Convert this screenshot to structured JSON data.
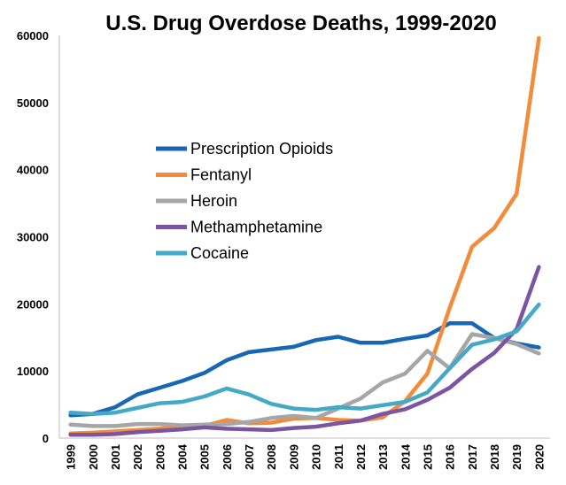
{
  "chart_data": {
    "type": "line",
    "title": "U.S. Drug Overdose Deaths, 1999-2020",
    "xlabel": "",
    "ylabel": "",
    "x": [
      "1999",
      "2000",
      "2001",
      "2002",
      "2003",
      "2004",
      "2005",
      "2006",
      "2007",
      "2008",
      "2009",
      "2010",
      "2011",
      "2012",
      "2013",
      "2014",
      "2015",
      "2016",
      "2017",
      "2018",
      "2019",
      "2020"
    ],
    "ylim": [
      0,
      60000
    ],
    "yticks": [
      0,
      10000,
      20000,
      30000,
      40000,
      50000,
      60000
    ],
    "grid": false,
    "legend_position": "center-left",
    "series": [
      {
        "name": "Prescription Opioids",
        "color": "#1767b3",
        "values": [
          3400,
          3600,
          4600,
          6500,
          7500,
          8500,
          9700,
          11600,
          12800,
          13200,
          13600,
          14600,
          15100,
          14200,
          14200,
          14800,
          15300,
          17100,
          17100,
          14900,
          14100,
          13500
        ]
      },
      {
        "name": "Fentanyl",
        "color": "#f28c3a",
        "values": [
          700,
          800,
          1000,
          1200,
          1400,
          1700,
          1800,
          2700,
          2200,
          2300,
          2900,
          3000,
          2700,
          2600,
          3100,
          5500,
          9600,
          19400,
          28500,
          31300,
          36400,
          59600
        ]
      },
      {
        "name": "Heroin",
        "color": "#a6a6a6",
        "values": [
          2000,
          1800,
          1800,
          2100,
          2100,
          1900,
          2000,
          2100,
          2400,
          3000,
          3300,
          3000,
          4400,
          5900,
          8300,
          9600,
          13000,
          10400,
          15500,
          14900,
          14000,
          12600
        ]
      },
      {
        "name": "Methamphetamine",
        "color": "#7b54a2",
        "values": [
          500,
          500,
          600,
          900,
          1100,
          1300,
          1600,
          1400,
          1300,
          1200,
          1500,
          1700,
          2200,
          2600,
          3600,
          4300,
          5700,
          7500,
          10300,
          12700,
          16200,
          25500
        ]
      },
      {
        "name": "Cocaine",
        "color": "#43a9c6",
        "values": [
          3800,
          3600,
          3800,
          4500,
          5200,
          5400,
          6200,
          7400,
          6500,
          5100,
          4400,
          4200,
          4600,
          4400,
          4900,
          5400,
          6800,
          10400,
          13900,
          14700,
          15900,
          19900
        ]
      }
    ]
  }
}
